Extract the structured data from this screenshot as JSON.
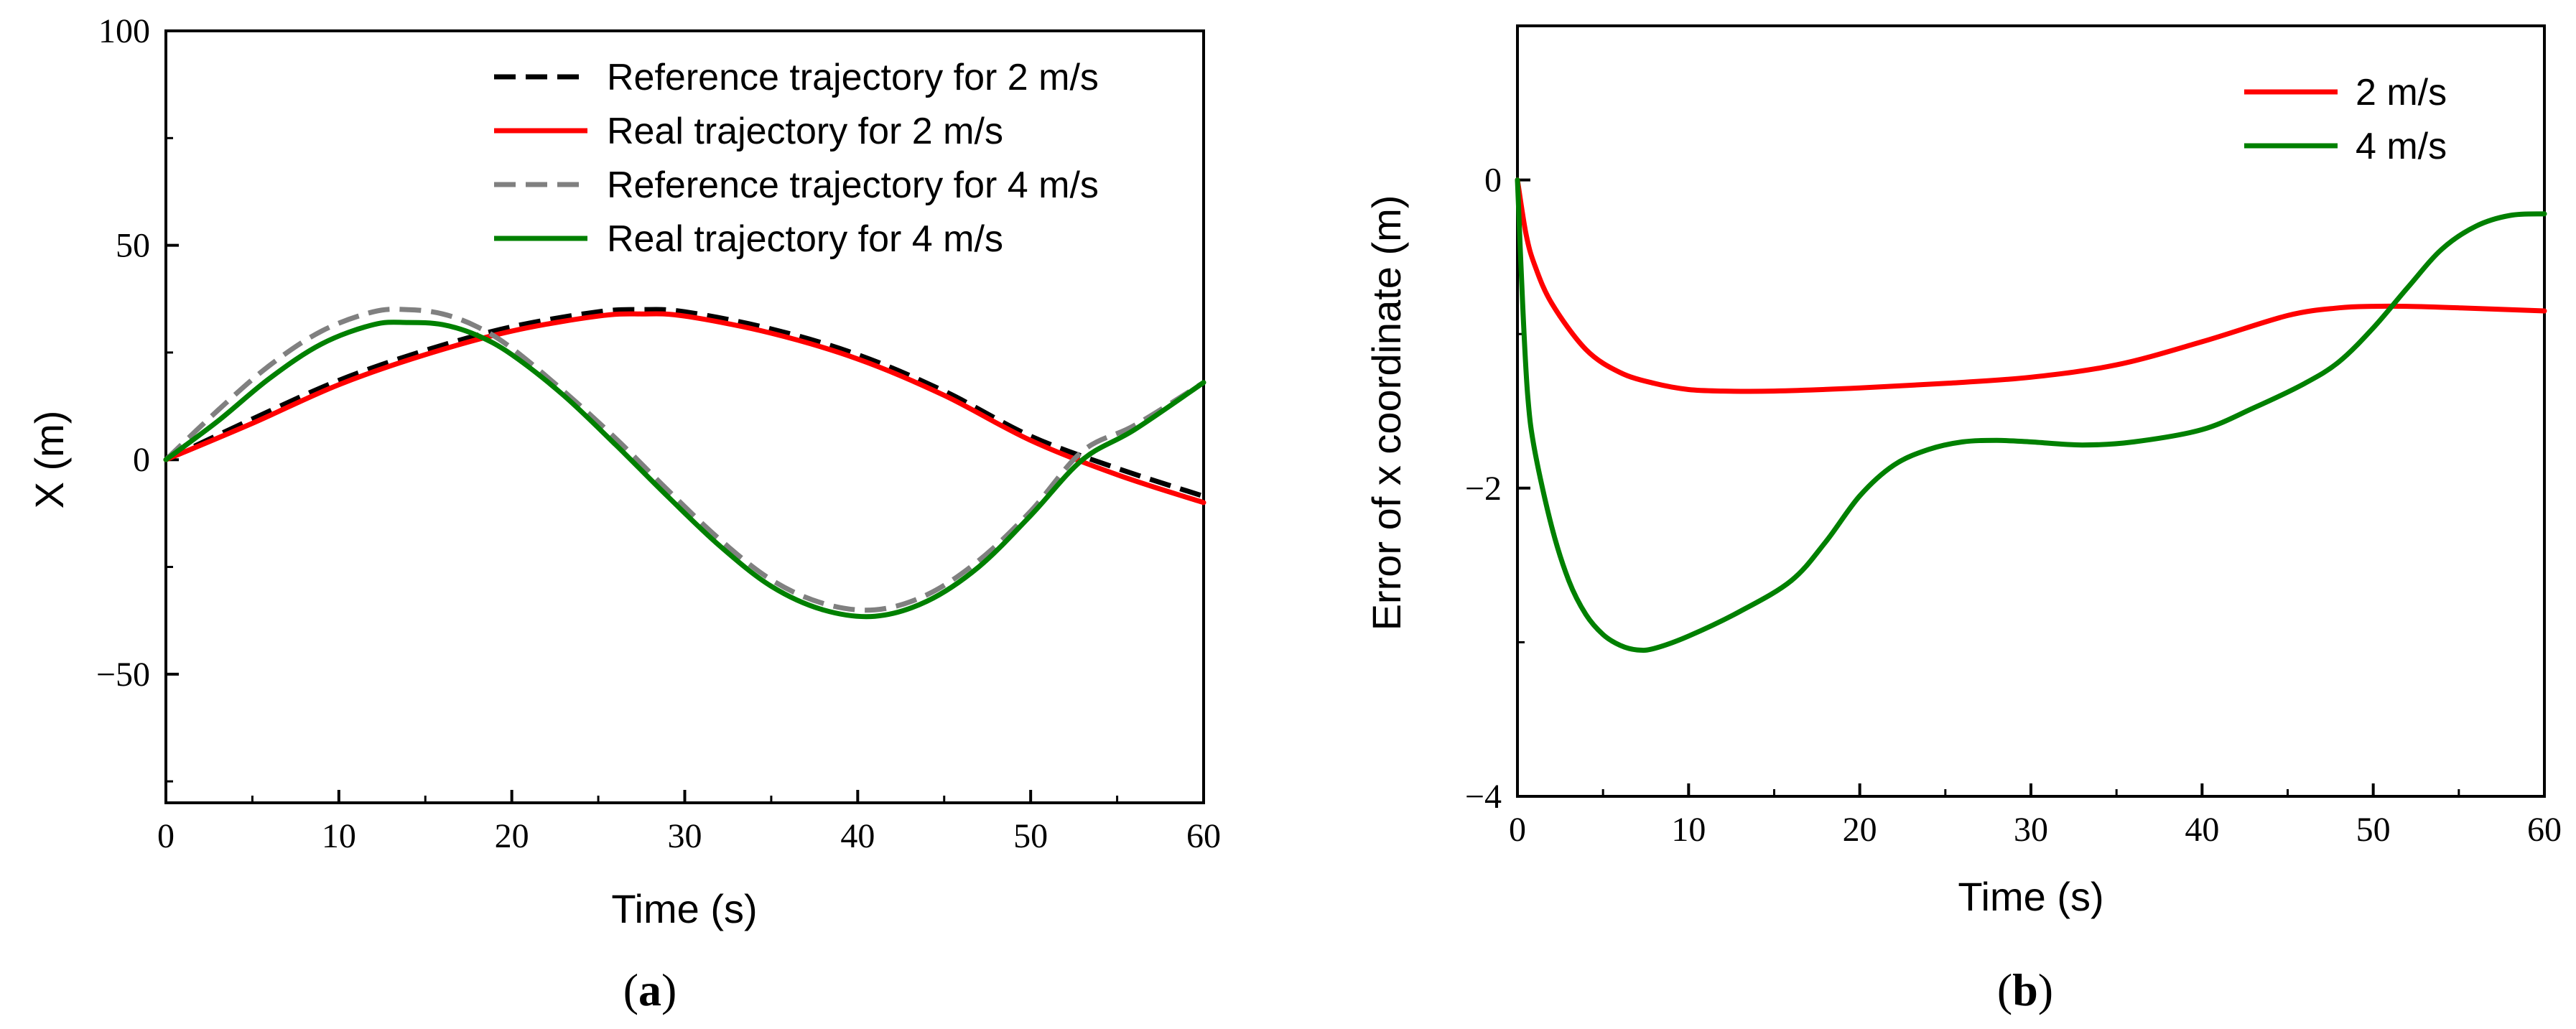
{
  "chart_data": [
    {
      "panel": "a",
      "type": "line",
      "title": "",
      "xlabel": "Time (s)",
      "ylabel": "X (m)",
      "xlim": [
        0,
        60
      ],
      "ylim": [
        -80,
        100
      ],
      "xticks": [
        0,
        10,
        20,
        30,
        40,
        50,
        60
      ],
      "yticks": [
        -50,
        0,
        50,
        100
      ],
      "xtick_labels": [
        "0",
        "10",
        "20",
        "30",
        "40",
        "50",
        "60"
      ],
      "ytick_labels": [
        "−50",
        "0",
        "50",
        "100"
      ],
      "grid": false,
      "legend_position": "top-right",
      "series": [
        {
          "name": "Reference trajectory for 2 m/s",
          "color": "#000000",
          "style": "dashed",
          "x": [
            0,
            5,
            10,
            15,
            20,
            25,
            27.5,
            30,
            35,
            40,
            45,
            50,
            55,
            60
          ],
          "y": [
            0,
            9.5,
            18.5,
            25.5,
            31,
            34.5,
            35,
            34.5,
            30.5,
            24.5,
            16,
            5.5,
            -2,
            -8.5
          ]
        },
        {
          "name": "Real trajectory for 2 m/s",
          "color": "#ff0000",
          "style": "solid",
          "x": [
            0,
            5,
            10,
            15,
            20,
            25,
            27.5,
            30,
            35,
            40,
            45,
            50,
            55,
            60
          ],
          "y": [
            0,
            8.5,
            17.5,
            24.5,
            30,
            33.5,
            34,
            33.5,
            29.5,
            23.5,
            15,
            4.5,
            -3.5,
            -10
          ]
        },
        {
          "name": "Reference trajectory for 4 m/s",
          "color": "#808080",
          "style": "dashed",
          "x": [
            0,
            3,
            6,
            9,
            12,
            14,
            16,
            18,
            20,
            23,
            26,
            29,
            32,
            35,
            38,
            41,
            44,
            47,
            50,
            53,
            56,
            60
          ],
          "y": [
            0,
            11.5,
            22,
            30,
            34.5,
            35,
            34,
            31,
            26,
            16,
            5,
            -7,
            -18.5,
            -28,
            -33.5,
            -35,
            -31.5,
            -23.5,
            -12,
            2,
            8,
            18
          ]
        },
        {
          "name": "Real trajectory for 4 m/s",
          "color": "#008000",
          "style": "solid",
          "x": [
            0,
            3,
            6,
            9,
            12,
            14,
            16,
            18,
            20,
            23,
            26,
            29,
            32,
            35,
            38,
            41,
            44,
            47,
            50,
            53,
            56,
            60
          ],
          "y": [
            0,
            9,
            19,
            27,
            31.5,
            32,
            31.5,
            29,
            24.5,
            15,
            3.5,
            -8.5,
            -20,
            -29.5,
            -35,
            -36.5,
            -33,
            -25,
            -13,
            0,
            7,
            18
          ]
        }
      ]
    },
    {
      "panel": "b",
      "type": "line",
      "title": "",
      "xlabel": "Time (s)",
      "ylabel": "Error of x coordinate (m)",
      "xlim": [
        0,
        60
      ],
      "ylim": [
        -4,
        1
      ],
      "xticks": [
        0,
        10,
        20,
        30,
        40,
        50,
        60
      ],
      "yticks": [
        -4,
        -2,
        0
      ],
      "xtick_labels": [
        "0",
        "10",
        "20",
        "30",
        "40",
        "50",
        "60"
      ],
      "ytick_labels": [
        "−4",
        "−2",
        "0"
      ],
      "grid": false,
      "legend_position": "top-right",
      "series": [
        {
          "name": "2 m/s",
          "color": "#ff0000",
          "style": "solid",
          "x": [
            0,
            0.5,
            1,
            2,
            4,
            6,
            8,
            10,
            12,
            15,
            20,
            25,
            30,
            35,
            40,
            45,
            48,
            50,
            52,
            55,
            60
          ],
          "y": [
            0,
            -0.35,
            -0.55,
            -0.8,
            -1.1,
            -1.25,
            -1.32,
            -1.36,
            -1.37,
            -1.37,
            -1.35,
            -1.32,
            -1.28,
            -1.2,
            -1.05,
            -0.88,
            -0.83,
            -0.82,
            -0.82,
            -0.83,
            -0.85
          ]
        },
        {
          "name": "4 m/s",
          "color": "#008000",
          "style": "solid",
          "x": [
            0,
            0.3,
            0.6,
            1,
            2,
            3,
            4,
            5,
            6,
            7,
            8,
            10,
            13,
            16,
            18,
            20,
            22,
            24,
            26,
            28,
            30,
            33,
            36,
            40,
            43,
            46,
            48,
            50,
            52,
            54,
            56,
            58,
            60
          ],
          "y": [
            0,
            -0.8,
            -1.4,
            -1.75,
            -2.25,
            -2.6,
            -2.82,
            -2.95,
            -3.02,
            -3.05,
            -3.04,
            -2.96,
            -2.8,
            -2.6,
            -2.35,
            -2.05,
            -1.85,
            -1.75,
            -1.7,
            -1.69,
            -1.7,
            -1.72,
            -1.7,
            -1.62,
            -1.48,
            -1.32,
            -1.18,
            -0.96,
            -0.7,
            -0.45,
            -0.3,
            -0.23,
            -0.22
          ]
        }
      ]
    }
  ],
  "panel_labels": [
    "(a)",
    "(b)"
  ]
}
